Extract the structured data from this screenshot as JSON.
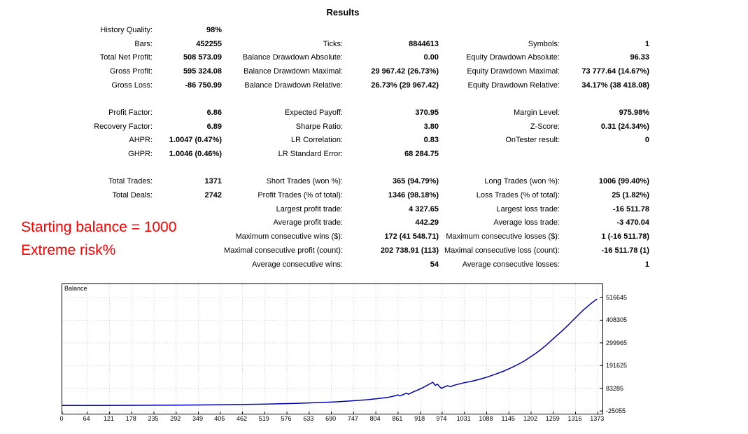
{
  "title": "Results",
  "annotation": {
    "line1": "Starting balance = 1000",
    "line2": "Extreme risk%",
    "color": "#ff0000"
  },
  "stats": {
    "rows": [
      {
        "c1l": "History Quality:",
        "c1v": "98%",
        "c2l": "",
        "c2v": "",
        "c3l": "",
        "c3v": ""
      },
      {
        "c1l": "Bars:",
        "c1v": "452255",
        "c2l": "Ticks:",
        "c2v": "8844613",
        "c3l": "Symbols:",
        "c3v": "1"
      },
      {
        "c1l": "Total Net Profit:",
        "c1v": "508 573.09",
        "c2l": "Balance Drawdown Absolute:",
        "c2v": "0.00",
        "c3l": "Equity Drawdown Absolute:",
        "c3v": "96.33"
      },
      {
        "c1l": "Gross Profit:",
        "c1v": "595 324.08",
        "c2l": "Balance Drawdown Maximal:",
        "c2v": "29 967.42 (26.73%)",
        "c3l": "Equity Drawdown Maximal:",
        "c3v": "73 777.64 (14.67%)"
      },
      {
        "c1l": "Gross Loss:",
        "c1v": "-86 750.99",
        "c2l": "Balance Drawdown Relative:",
        "c2v": "26.73% (29 967.42)",
        "c3l": "Equity Drawdown Relative:",
        "c3v": "34.17% (38 418.08)"
      },
      {
        "c1l": "",
        "c1v": "",
        "c2l": "",
        "c2v": "",
        "c3l": "",
        "c3v": ""
      },
      {
        "c1l": "Profit Factor:",
        "c1v": "6.86",
        "c2l": "Expected Payoff:",
        "c2v": "370.95",
        "c3l": "Margin Level:",
        "c3v": "975.98%"
      },
      {
        "c1l": "Recovery Factor:",
        "c1v": "6.89",
        "c2l": "Sharpe Ratio:",
        "c2v": "3.80",
        "c3l": "Z-Score:",
        "c3v": "0.31 (24.34%)"
      },
      {
        "c1l": "AHPR:",
        "c1v": "1.0047 (0.47%)",
        "c2l": "LR Correlation:",
        "c2v": "0.83",
        "c3l": "OnTester result:",
        "c3v": "0"
      },
      {
        "c1l": "GHPR:",
        "c1v": "1.0046 (0.46%)",
        "c2l": "LR Standard Error:",
        "c2v": "68 284.75",
        "c3l": "",
        "c3v": ""
      },
      {
        "c1l": "",
        "c1v": "",
        "c2l": "",
        "c2v": "",
        "c3l": "",
        "c3v": ""
      },
      {
        "c1l": "Total Trades:",
        "c1v": "1371",
        "c2l": "Short Trades (won %):",
        "c2v": "365 (94.79%)",
        "c3l": "Long Trades (won %):",
        "c3v": "1006 (99.40%)"
      },
      {
        "c1l": "Total Deals:",
        "c1v": "2742",
        "c2l": "Profit Trades (% of total):",
        "c2v": "1346 (98.18%)",
        "c3l": "Loss Trades (% of total):",
        "c3v": "25 (1.82%)"
      },
      {
        "c1l": "",
        "c1v": "",
        "c2l": "Largest profit trade:",
        "c2v": "4 327.65",
        "c3l": "Largest loss trade:",
        "c3v": "-16 511.78"
      },
      {
        "c1l": "",
        "c1v": "",
        "c2l": "Average profit trade:",
        "c2v": "442.29",
        "c3l": "Average loss trade:",
        "c3v": "-3 470.04"
      },
      {
        "c1l": "",
        "c1v": "",
        "c2l": "Maximum consecutive wins ($):",
        "c2v": "172 (41 548.71)",
        "c3l": "Maximum consecutive losses ($):",
        "c3v": "1 (-16 511.78)"
      },
      {
        "c1l": "",
        "c1v": "",
        "c2l": "Maximal consecutive profit (count):",
        "c2v": "202 738.91 (113)",
        "c3l": "Maximal consecutive loss (count):",
        "c3v": "-16 511.78 (1)"
      },
      {
        "c1l": "",
        "c1v": "",
        "c2l": "Average consecutive wins:",
        "c2v": "54",
        "c3l": "Average consecutive losses:",
        "c3v": "1"
      }
    ]
  },
  "chart_data": {
    "type": "line",
    "title": "Balance",
    "x_ticks": [
      0,
      64,
      121,
      178,
      235,
      292,
      349,
      405,
      462,
      519,
      576,
      633,
      690,
      747,
      804,
      861,
      918,
      974,
      1031,
      1088,
      1145,
      1202,
      1259,
      1316,
      1373
    ],
    "y_ticks": [
      516645,
      408305,
      299965,
      191625,
      83285,
      -25055
    ],
    "xlim": [
      0,
      1385
    ],
    "ylim": [
      -38000,
      580000
    ],
    "grid": "dotted",
    "grid_color": "#d6d6d6",
    "legend_position": "top-left",
    "series": [
      {
        "name": "Balance",
        "color": "#0000b4",
        "points": [
          [
            0,
            1000
          ],
          [
            50,
            1200
          ],
          [
            100,
            1450
          ],
          [
            150,
            1750
          ],
          [
            200,
            2100
          ],
          [
            250,
            2550
          ],
          [
            300,
            3100
          ],
          [
            350,
            3800
          ],
          [
            400,
            4700
          ],
          [
            450,
            5800
          ],
          [
            500,
            7200
          ],
          [
            550,
            9000
          ],
          [
            600,
            11500
          ],
          [
            650,
            14500
          ],
          [
            700,
            18500
          ],
          [
            740,
            23000
          ],
          [
            780,
            28500
          ],
          [
            810,
            34000
          ],
          [
            835,
            40000
          ],
          [
            850,
            46000
          ],
          [
            861,
            52000
          ],
          [
            866,
            47000
          ],
          [
            875,
            54000
          ],
          [
            882,
            60000
          ],
          [
            888,
            55000
          ],
          [
            895,
            62000
          ],
          [
            905,
            70000
          ],
          [
            915,
            78000
          ],
          [
            925,
            87000
          ],
          [
            935,
            97000
          ],
          [
            944,
            106000
          ],
          [
            950,
            112000
          ],
          [
            956,
            97000
          ],
          [
            962,
            103000
          ],
          [
            967,
            92000
          ],
          [
            972,
            83000
          ],
          [
            980,
            90000
          ],
          [
            988,
            96000
          ],
          [
            995,
            91000
          ],
          [
            1005,
            98000
          ],
          [
            1020,
            105000
          ],
          [
            1031,
            110000
          ],
          [
            1050,
            117000
          ],
          [
            1070,
            126000
          ],
          [
            1088,
            136000
          ],
          [
            1110,
            150000
          ],
          [
            1130,
            164000
          ],
          [
            1145,
            176000
          ],
          [
            1165,
            194000
          ],
          [
            1185,
            214000
          ],
          [
            1202,
            235000
          ],
          [
            1220,
            258000
          ],
          [
            1240,
            288000
          ],
          [
            1259,
            320000
          ],
          [
            1280,
            355000
          ],
          [
            1300,
            390000
          ],
          [
            1316,
            420000
          ],
          [
            1335,
            455000
          ],
          [
            1355,
            487000
          ],
          [
            1371,
            509573
          ]
        ]
      }
    ]
  }
}
